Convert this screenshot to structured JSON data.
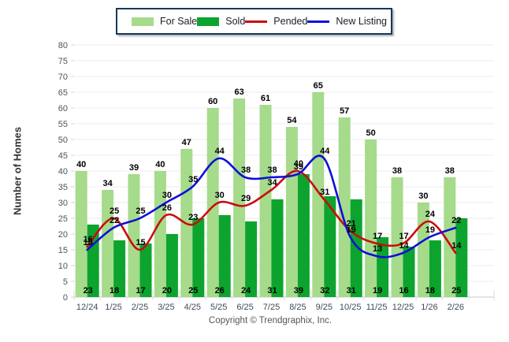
{
  "legend": {
    "items": [
      {
        "label": "For Sale",
        "type": "bar",
        "color": "#A5DB8A"
      },
      {
        "label": "Sold",
        "type": "bar",
        "color": "#0CA42E"
      },
      {
        "label": "Pended",
        "type": "line",
        "color": "#C90D0D"
      },
      {
        "label": "New Listing",
        "type": "line",
        "color": "#0F0FD6"
      }
    ]
  },
  "chart_data": {
    "type": "bar+line",
    "categories": [
      "12/24",
      "1/25",
      "2/25",
      "3/25",
      "4/25",
      "5/25",
      "6/25",
      "7/25",
      "8/25",
      "9/25",
      "10/25",
      "11/25",
      "12/25",
      "1/26",
      "2/26"
    ],
    "series": [
      {
        "name": "For Sale",
        "type": "bar",
        "color": "#A5DB8A",
        "values": [
          40,
          34,
          39,
          40,
          47,
          60,
          63,
          61,
          54,
          65,
          57,
          50,
          38,
          30,
          38
        ]
      },
      {
        "name": "Sold",
        "type": "bar",
        "color": "#0CA42E",
        "values": [
          23,
          18,
          17,
          20,
          25,
          26,
          24,
          31,
          39,
          32,
          31,
          19,
          16,
          18,
          25
        ]
      },
      {
        "name": "Pended",
        "type": "line",
        "color": "#C90D0D",
        "values": [
          16,
          25,
          15,
          26,
          23,
          30,
          29,
          34,
          40,
          31,
          21,
          17,
          17,
          24,
          14
        ]
      },
      {
        "name": "New Listing",
        "type": "line",
        "color": "#0F0FD6",
        "values": [
          15,
          22,
          25,
          30,
          35,
          44,
          38,
          38,
          39,
          44,
          19,
          13,
          14,
          19,
          22
        ]
      }
    ],
    "ylabel": "Number of Homes",
    "ylim": [
      0,
      80
    ],
    "ytick_step": 5,
    "grid": true,
    "legend_position": "top"
  },
  "footer": {
    "copyright": "Copyright © Trendgraphix, Inc."
  }
}
